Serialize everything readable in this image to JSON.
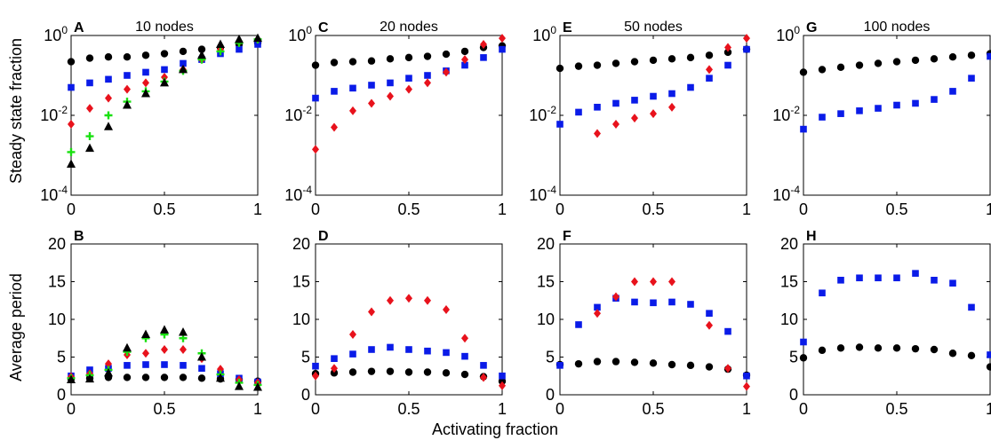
{
  "figure": {
    "ylabel_top": "Steady state fraction",
    "ylabel_bottom": "Average period",
    "xlabel": "Activating fraction"
  },
  "colors": {
    "black": "#000000",
    "blue": "#0a1be8",
    "red": "#e8121c",
    "green": "#19e010"
  },
  "chart_data": [
    {
      "panel": "A",
      "title": "10 nodes",
      "type": "scatter",
      "yscale": "log",
      "xlim": [
        0,
        1
      ],
      "ylim": [
        0.0001,
        1
      ],
      "xticks": [
        "0",
        "0.5",
        "1"
      ],
      "yticks": [
        {
          "base": "10",
          "exp": "0"
        },
        {
          "base": "10",
          "exp": "-2"
        },
        {
          "base": "10",
          "exp": "-4"
        }
      ],
      "series": [
        {
          "color": "black",
          "marker": "circle",
          "x": [
            0,
            0.1,
            0.2,
            0.3,
            0.4,
            0.5,
            0.6,
            0.7,
            0.8,
            0.9,
            1
          ],
          "y": [
            0.22,
            0.27,
            0.29,
            0.29,
            0.32,
            0.35,
            0.4,
            0.45,
            0.5,
            0.6,
            0.65
          ]
        },
        {
          "color": "blue",
          "marker": "square",
          "x": [
            0,
            0.1,
            0.2,
            0.3,
            0.4,
            0.5,
            0.6,
            0.7,
            0.8,
            0.9,
            1
          ],
          "y": [
            0.05,
            0.065,
            0.08,
            0.1,
            0.12,
            0.14,
            0.2,
            0.25,
            0.35,
            0.45,
            0.6
          ]
        },
        {
          "color": "red",
          "marker": "diamond",
          "x": [
            0,
            0.1,
            0.2,
            0.3,
            0.4,
            0.5,
            0.6,
            0.7,
            0.8,
            0.9,
            1
          ],
          "y": [
            0.006,
            0.015,
            0.027,
            0.045,
            0.065,
            0.09,
            0.14,
            0.25,
            0.45,
            0.7,
            0.8
          ]
        },
        {
          "color": "green",
          "marker": "plus",
          "x": [
            0,
            0.1,
            0.2,
            0.3,
            0.4,
            0.5,
            0.6,
            0.7,
            0.8,
            0.9,
            1
          ],
          "y": [
            0.0012,
            0.003,
            0.01,
            0.022,
            0.04,
            0.07,
            0.13,
            0.25,
            0.4,
            0.65,
            0.8
          ]
        },
        {
          "color": "black",
          "marker": "triangle",
          "x": [
            0,
            0.1,
            0.2,
            0.3,
            0.4,
            0.5,
            0.6,
            0.7,
            0.8,
            0.9,
            1
          ],
          "y": [
            0.0006,
            0.0015,
            0.0052,
            0.018,
            0.035,
            0.065,
            0.14,
            0.32,
            0.6,
            0.8,
            0.85
          ]
        }
      ]
    },
    {
      "panel": "C",
      "title": "20 nodes",
      "type": "scatter",
      "yscale": "log",
      "xlim": [
        0,
        1
      ],
      "ylim": [
        0.0001,
        1
      ],
      "xticks": [
        "0",
        "0.5",
        "1"
      ],
      "yticks": [
        {
          "base": "10",
          "exp": "0"
        },
        {
          "base": "10",
          "exp": "-2"
        },
        {
          "base": "10",
          "exp": "-4"
        }
      ],
      "series": [
        {
          "color": "black",
          "marker": "circle",
          "x": [
            0,
            0.1,
            0.2,
            0.3,
            0.4,
            0.5,
            0.6,
            0.7,
            0.8,
            0.9,
            1
          ],
          "y": [
            0.18,
            0.21,
            0.22,
            0.23,
            0.26,
            0.28,
            0.3,
            0.34,
            0.4,
            0.5,
            0.55
          ]
        },
        {
          "color": "blue",
          "marker": "square",
          "x": [
            0,
            0.1,
            0.2,
            0.3,
            0.4,
            0.5,
            0.6,
            0.7,
            0.8,
            0.9,
            1
          ],
          "y": [
            0.027,
            0.04,
            0.048,
            0.057,
            0.065,
            0.085,
            0.1,
            0.13,
            0.18,
            0.28,
            0.45
          ]
        },
        {
          "color": "red",
          "marker": "diamond",
          "x": [
            0,
            0.1,
            0.2,
            0.3,
            0.4,
            0.5,
            0.6,
            0.7,
            0.8,
            0.9,
            1
          ],
          "y": [
            0.0014,
            0.005,
            0.013,
            0.02,
            0.03,
            0.045,
            0.065,
            0.12,
            0.25,
            0.6,
            0.85
          ]
        }
      ]
    },
    {
      "panel": "E",
      "title": "50 nodes",
      "type": "scatter",
      "yscale": "log",
      "xlim": [
        0,
        1
      ],
      "ylim": [
        0.0001,
        1
      ],
      "xticks": [
        "0",
        "0.5",
        "1"
      ],
      "yticks": [
        {
          "base": "10",
          "exp": "0"
        },
        {
          "base": "10",
          "exp": "-2"
        },
        {
          "base": "10",
          "exp": "-4"
        }
      ],
      "series": [
        {
          "color": "black",
          "marker": "circle",
          "x": [
            0,
            0.1,
            0.2,
            0.3,
            0.4,
            0.5,
            0.6,
            0.7,
            0.8,
            0.9,
            1
          ],
          "y": [
            0.15,
            0.17,
            0.18,
            0.2,
            0.22,
            0.24,
            0.26,
            0.28,
            0.32,
            0.38,
            0.45
          ]
        },
        {
          "color": "blue",
          "marker": "square",
          "x": [
            0,
            0.1,
            0.2,
            0.3,
            0.4,
            0.5,
            0.6,
            0.7,
            0.8,
            0.9,
            1
          ],
          "y": [
            0.006,
            0.012,
            0.016,
            0.02,
            0.024,
            0.03,
            0.035,
            0.05,
            0.085,
            0.18,
            0.45
          ]
        },
        {
          "color": "red",
          "marker": "diamond",
          "x": [
            0.2,
            0.3,
            0.4,
            0.5,
            0.6,
            0.8,
            0.9,
            1
          ],
          "y": [
            0.0035,
            0.006,
            0.0085,
            0.011,
            0.016,
            0.14,
            0.5,
            0.85
          ]
        }
      ]
    },
    {
      "panel": "G",
      "title": "100 nodes",
      "type": "scatter",
      "yscale": "log",
      "xlim": [
        0,
        1
      ],
      "ylim": [
        0.0001,
        1
      ],
      "xticks": [
        "0",
        "0.5",
        "1"
      ],
      "yticks": [
        {
          "base": "10",
          "exp": "0"
        },
        {
          "base": "10",
          "exp": "-2"
        },
        {
          "base": "10",
          "exp": "-4"
        }
      ],
      "series": [
        {
          "color": "black",
          "marker": "circle",
          "x": [
            0,
            0.1,
            0.2,
            0.3,
            0.4,
            0.5,
            0.6,
            0.7,
            0.8,
            0.9,
            1
          ],
          "y": [
            0.12,
            0.14,
            0.16,
            0.18,
            0.2,
            0.22,
            0.24,
            0.26,
            0.29,
            0.32,
            0.35
          ]
        },
        {
          "color": "blue",
          "marker": "square",
          "x": [
            0,
            0.1,
            0.2,
            0.3,
            0.4,
            0.5,
            0.6,
            0.7,
            0.8,
            0.9,
            1
          ],
          "y": [
            0.0045,
            0.009,
            0.011,
            0.013,
            0.015,
            0.018,
            0.02,
            0.025,
            0.04,
            0.085,
            0.3
          ]
        }
      ]
    },
    {
      "panel": "B",
      "title": "",
      "type": "scatter",
      "yscale": "linear",
      "xlim": [
        0,
        1
      ],
      "ylim": [
        0,
        20
      ],
      "xticks": [
        "0",
        "0.5",
        "1"
      ],
      "yticks": [
        {
          "base": "20"
        },
        {
          "base": "15"
        },
        {
          "base": "10"
        },
        {
          "base": "5"
        },
        {
          "base": "0"
        }
      ],
      "series": [
        {
          "color": "black",
          "marker": "circle",
          "x": [
            0,
            0.1,
            0.2,
            0.3,
            0.4,
            0.5,
            0.6,
            0.7,
            0.8,
            0.9,
            1
          ],
          "y": [
            2.1,
            2.2,
            2.3,
            2.3,
            2.3,
            2.3,
            2.3,
            2.2,
            2.1,
            2.0,
            1.8
          ]
        },
        {
          "color": "blue",
          "marker": "square",
          "x": [
            0,
            0.1,
            0.2,
            0.3,
            0.4,
            0.5,
            0.6,
            0.7,
            0.8,
            0.9,
            1
          ],
          "y": [
            2.5,
            3.3,
            3.5,
            3.9,
            4.0,
            4.0,
            3.9,
            3.5,
            2.8,
            2.2,
            1.7
          ]
        },
        {
          "color": "red",
          "marker": "diamond",
          "x": [
            0,
            0.1,
            0.2,
            0.3,
            0.4,
            0.5,
            0.6,
            0.7,
            0.8,
            0.9,
            1
          ],
          "y": [
            2.4,
            2.8,
            4.1,
            5.3,
            5.5,
            6.0,
            6.0,
            4.8,
            3.4,
            2.0,
            1.6
          ]
        },
        {
          "color": "green",
          "marker": "plus",
          "x": [
            0,
            0.1,
            0.2,
            0.3,
            0.4,
            0.5,
            0.6,
            0.7,
            0.8,
            0.9,
            1
          ],
          "y": [
            2.2,
            2.6,
            3.3,
            5.7,
            7.5,
            8.0,
            7.5,
            5.5,
            2.7,
            1.6,
            1.3
          ]
        },
        {
          "color": "black",
          "marker": "triangle",
          "x": [
            0,
            0.1,
            0.2,
            0.3,
            0.4,
            0.5,
            0.6,
            0.7,
            0.8,
            0.9,
            1
          ],
          "y": [
            2.0,
            2.1,
            2.9,
            6.2,
            8.0,
            8.6,
            8.3,
            5.0,
            2.2,
            1.1,
            1.0
          ]
        }
      ]
    },
    {
      "panel": "D",
      "title": "",
      "type": "scatter",
      "yscale": "linear",
      "xlim": [
        0,
        1
      ],
      "ylim": [
        0,
        20
      ],
      "xticks": [
        "0",
        "0.5",
        "1"
      ],
      "yticks": [
        {
          "base": "20"
        },
        {
          "base": "15"
        },
        {
          "base": "10"
        },
        {
          "base": "5"
        },
        {
          "base": "0"
        }
      ],
      "series": [
        {
          "color": "black",
          "marker": "circle",
          "x": [
            0,
            0.1,
            0.2,
            0.3,
            0.4,
            0.5,
            0.6,
            0.7,
            0.8,
            0.9,
            1
          ],
          "y": [
            2.8,
            2.9,
            3.0,
            3.1,
            3.1,
            3.0,
            3.0,
            2.9,
            2.7,
            2.4,
            1.8
          ]
        },
        {
          "color": "blue",
          "marker": "square",
          "x": [
            0,
            0.1,
            0.2,
            0.3,
            0.4,
            0.5,
            0.6,
            0.7,
            0.8,
            0.9,
            1
          ],
          "y": [
            3.8,
            4.8,
            5.4,
            6.0,
            6.3,
            6.0,
            5.8,
            5.6,
            5.1,
            3.9,
            2.5
          ]
        },
        {
          "color": "red",
          "marker": "diamond",
          "x": [
            0,
            0.1,
            0.2,
            0.3,
            0.4,
            0.5,
            0.6,
            0.7,
            0.8,
            0.9,
            1
          ],
          "y": [
            2.5,
            3.5,
            8.0,
            11.0,
            12.5,
            12.8,
            12.5,
            11.3,
            7.5,
            2.3,
            1.2
          ]
        }
      ]
    },
    {
      "panel": "F",
      "title": "",
      "type": "scatter",
      "yscale": "linear",
      "xlim": [
        0,
        1
      ],
      "ylim": [
        0,
        20
      ],
      "xticks": [
        "0",
        "0.5",
        "1"
      ],
      "yticks": [
        {
          "base": "20"
        },
        {
          "base": "15"
        },
        {
          "base": "10"
        },
        {
          "base": "5"
        },
        {
          "base": "0"
        }
      ],
      "series": [
        {
          "color": "black",
          "marker": "circle",
          "x": [
            0,
            0.1,
            0.2,
            0.3,
            0.4,
            0.5,
            0.6,
            0.7,
            0.8,
            0.9,
            1
          ],
          "y": [
            4.0,
            4.1,
            4.4,
            4.4,
            4.3,
            4.2,
            4.0,
            3.9,
            3.7,
            3.4,
            2.6
          ]
        },
        {
          "color": "blue",
          "marker": "square",
          "x": [
            0,
            0.1,
            0.2,
            0.3,
            0.4,
            0.5,
            0.6,
            0.7,
            0.8,
            0.9,
            1
          ],
          "y": [
            3.9,
            9.3,
            11.6,
            12.8,
            12.3,
            12.2,
            12.3,
            12.0,
            10.8,
            8.4,
            2.5
          ]
        },
        {
          "color": "red",
          "marker": "diamond",
          "x": [
            0.2,
            0.3,
            0.4,
            0.5,
            0.6,
            0.8,
            0.9,
            1
          ],
          "y": [
            10.8,
            13.0,
            15.0,
            15.0,
            15.0,
            9.2,
            3.5,
            1.1
          ]
        }
      ]
    },
    {
      "panel": "H",
      "title": "",
      "type": "scatter",
      "yscale": "linear",
      "xlim": [
        0,
        1
      ],
      "ylim": [
        0,
        20
      ],
      "xticks": [
        "0",
        "0.5",
        "1"
      ],
      "yticks": [
        {
          "base": "20"
        },
        {
          "base": "15"
        },
        {
          "base": "10"
        },
        {
          "base": "5"
        },
        {
          "base": "0"
        }
      ],
      "series": [
        {
          "color": "black",
          "marker": "circle",
          "x": [
            0,
            0.1,
            0.2,
            0.3,
            0.4,
            0.5,
            0.6,
            0.7,
            0.8,
            0.9,
            1
          ],
          "y": [
            4.9,
            5.9,
            6.2,
            6.3,
            6.2,
            6.2,
            6.1,
            6.0,
            5.5,
            5.2,
            3.7
          ]
        },
        {
          "color": "blue",
          "marker": "square",
          "x": [
            0,
            0.1,
            0.2,
            0.3,
            0.4,
            0.5,
            0.6,
            0.7,
            0.8,
            0.9,
            1
          ],
          "y": [
            7.0,
            13.5,
            15.2,
            15.5,
            15.5,
            15.5,
            16.1,
            15.2,
            14.8,
            11.6,
            5.3
          ]
        }
      ]
    }
  ]
}
